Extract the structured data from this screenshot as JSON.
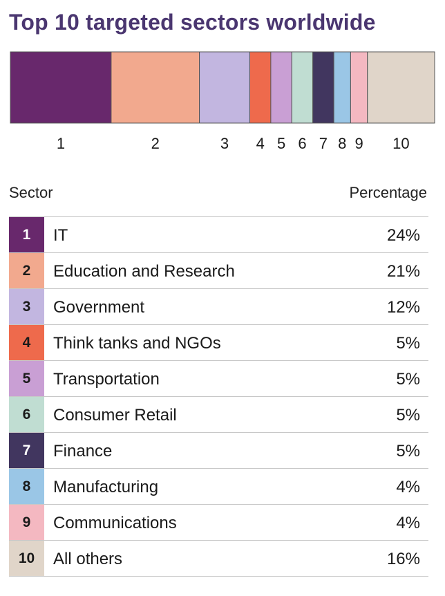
{
  "chart_data": {
    "type": "bar",
    "title": "Top 10 targeted sectors worldwide",
    "categories": [
      "1",
      "2",
      "3",
      "4",
      "5",
      "6",
      "7",
      "8",
      "9",
      "10"
    ],
    "series": [
      {
        "values": [
          24,
          21,
          12,
          5,
          5,
          5,
          5,
          4,
          4,
          16
        ]
      }
    ],
    "colors": [
      "#68286c",
      "#f2a98e",
      "#c2b6e0",
      "#ee6a4c",
      "#c99fd4",
      "#c0ddd2",
      "#41365f",
      "#9ac6e6",
      "#f4b8c1",
      "#e0d5c9"
    ],
    "stacked": true,
    "orientation": "horizontal",
    "grid": false,
    "legend": "table-below"
  },
  "table": {
    "headers": {
      "sector": "Sector",
      "percentage": "Percentage"
    },
    "rows": [
      {
        "num": "1",
        "label": "IT",
        "value": "24%",
        "color": "#68286c",
        "text_color": "#ffffff"
      },
      {
        "num": "2",
        "label": "Education and Research",
        "value": "21%",
        "color": "#f2a98e",
        "text_color": "#1a1a1a"
      },
      {
        "num": "3",
        "label": "Government",
        "value": "12%",
        "color": "#c2b6e0",
        "text_color": "#1a1a1a"
      },
      {
        "num": "4",
        "label": "Think tanks and NGOs",
        "value": "5%",
        "color": "#ee6a4c",
        "text_color": "#1a1a1a"
      },
      {
        "num": "5",
        "label": "Transportation",
        "value": "5%",
        "color": "#c99fd4",
        "text_color": "#1a1a1a"
      },
      {
        "num": "6",
        "label": "Consumer Retail",
        "value": "5%",
        "color": "#c0ddd2",
        "text_color": "#1a1a1a"
      },
      {
        "num": "7",
        "label": "Finance",
        "value": "5%",
        "color": "#41365f",
        "text_color": "#ffffff"
      },
      {
        "num": "8",
        "label": "Manufacturing",
        "value": "4%",
        "color": "#9ac6e6",
        "text_color": "#1a1a1a"
      },
      {
        "num": "9",
        "label": "Communications",
        "value": "4%",
        "color": "#f4b8c1",
        "text_color": "#1a1a1a"
      },
      {
        "num": "10",
        "label": "All others",
        "value": "16%",
        "color": "#e0d5c9",
        "text_color": "#1a1a1a"
      }
    ]
  }
}
